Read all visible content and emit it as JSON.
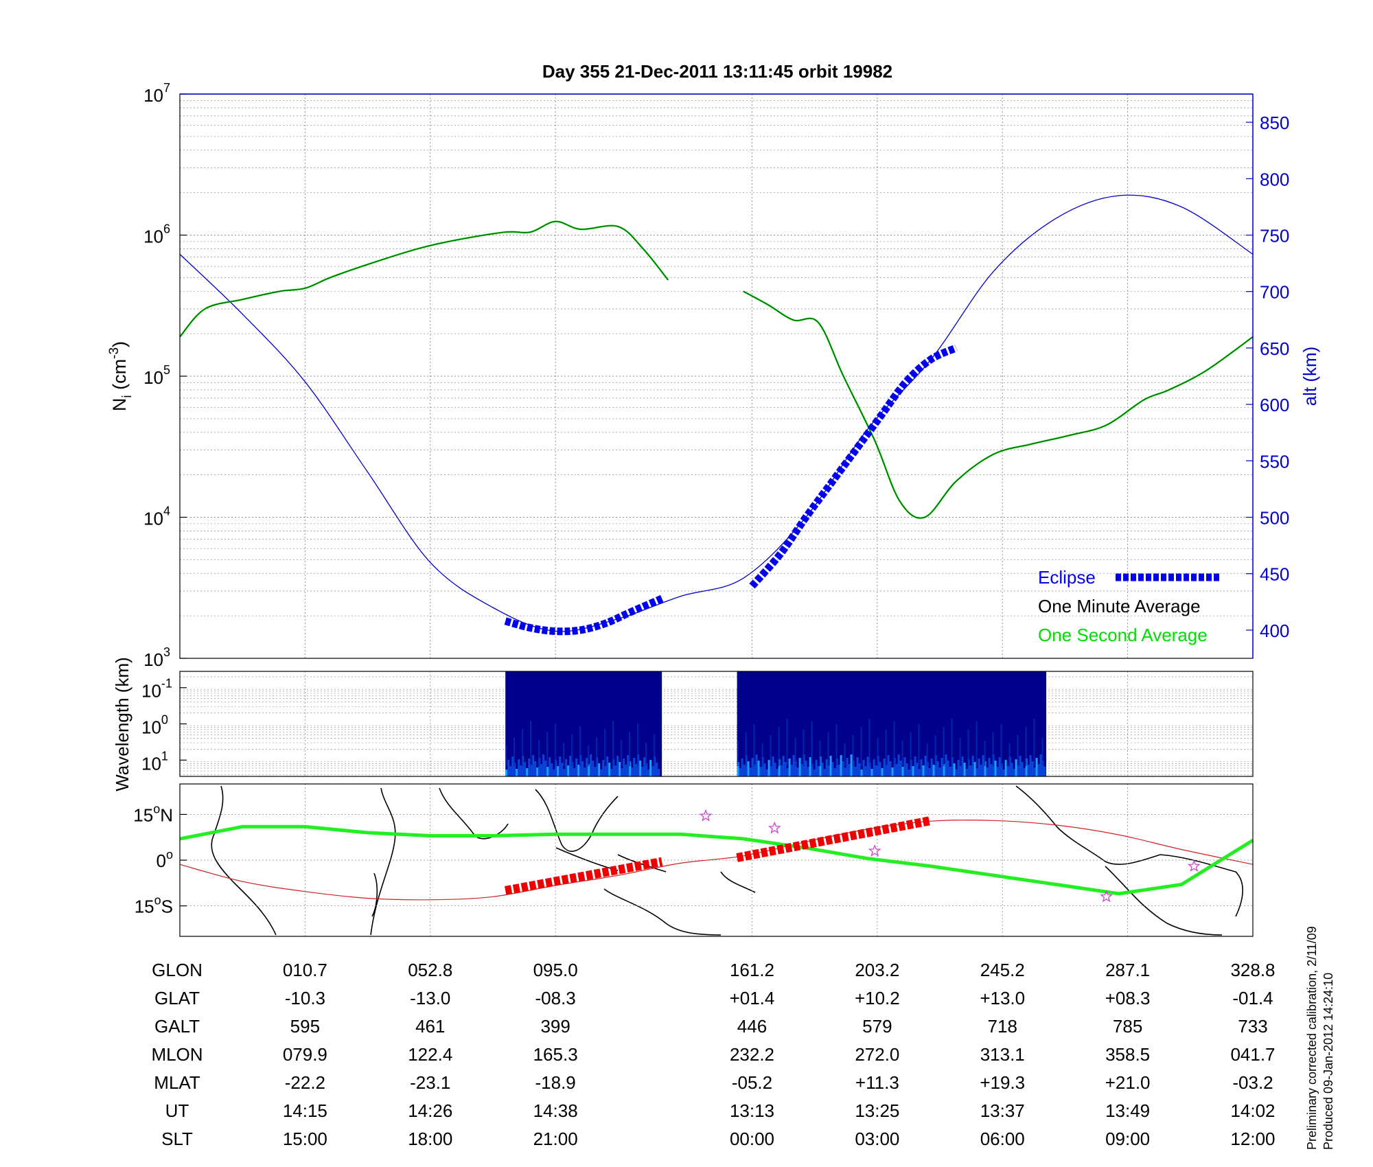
{
  "title": "Day 355  21-Dec-2011 13:11:45   orbit 19982",
  "colors": {
    "density": "#006400",
    "altitude": "#0000cc",
    "eclipse": "#0000ee",
    "axis_right": "#0000cc",
    "one_second": "#00dd00",
    "track_green": "#22ee22",
    "track_red_line": "#cc2222",
    "track_red_marks": "#ee0000",
    "stars": "#cc44cc"
  },
  "chart_data": [
    {
      "type": "line",
      "title": "Day 355  21-Dec-2011 13:11:45   orbit 19982",
      "ylabel": "N",
      "ylabel_sub": "i",
      "ylabel_unit": "(cm",
      "ylabel_unit_sup": "-3",
      "ylabel_unit_end": ")",
      "yscale": "log",
      "ylim": [
        1000,
        10000000
      ],
      "y_ticks": [
        {
          "base": "10",
          "exp": "3",
          "value": 1000
        },
        {
          "base": "10",
          "exp": "4",
          "value": 10000
        },
        {
          "base": "10",
          "exp": "5",
          "value": 100000
        },
        {
          "base": "10",
          "exp": "6",
          "value": 1000000
        },
        {
          "base": "10",
          "exp": "7",
          "value": 10000000
        }
      ],
      "y2label": "alt (km)",
      "y2lim": [
        375,
        875
      ],
      "y2_ticks": [
        "400",
        "450",
        "500",
        "550",
        "600",
        "650",
        "700",
        "750",
        "800",
        "850"
      ],
      "xlim": [
        0,
        8.57
      ],
      "x_gridlines": [
        1,
        2,
        3,
        4.57,
        5.57,
        6.57,
        7.57,
        8.57
      ],
      "grid": true,
      "legend": {
        "placement": "bottom-right",
        "entries": [
          {
            "label": "Eclipse",
            "color": "#0000ee"
          },
          {
            "label": "One Minute Average",
            "color": "#000000"
          },
          {
            "label": "One Second Average",
            "color": "#00dd00"
          }
        ]
      },
      "series": [
        {
          "name": "One Minute Average",
          "segments": [
            {
              "x": [
                0,
                0.2,
                0.5,
                0.8,
                1.0,
                1.2,
                1.5,
                1.9,
                2.2,
                2.6,
                2.8,
                3.0,
                3.2,
                3.5,
                3.7,
                3.9
              ],
              "y": [
                190000,
                300000,
                350000,
                400000,
                420000,
                500000,
                620000,
                800000,
                920000,
                1050000,
                1050000,
                1250000,
                1100000,
                1150000,
                800000,
                480000
              ]
            },
            {
              "x": [
                4.5,
                4.7,
                4.9,
                5.1,
                5.3,
                5.55,
                5.75,
                5.95,
                6.2,
                6.5,
                6.8,
                7.1,
                7.4,
                7.7,
                7.9,
                8.2,
                8.57
              ],
              "y": [
                400000,
                320000,
                250000,
                240000,
                100000,
                35000,
                13000,
                10000,
                18000,
                28000,
                33000,
                38000,
                45000,
                68000,
                80000,
                110000,
                190000
              ]
            }
          ]
        },
        {
          "name": "altitude",
          "axis": "right",
          "x": [
            0,
            0.5,
            1.0,
            1.5,
            2.0,
            2.5,
            3.0,
            3.5,
            4.0,
            4.5,
            5.0,
            5.5,
            6.0,
            6.5,
            7.0,
            7.5,
            8.0,
            8.57
          ],
          "y": [
            733,
            680,
            620,
            540,
            460,
            420,
            399,
            410,
            430,
            446,
            500,
            579,
            640,
            718,
            765,
            785,
            775,
            733
          ]
        },
        {
          "name": "Eclipse",
          "axis": "right",
          "segments": [
            {
              "x": [
                2.6,
                2.8,
                3.0,
                3.2,
                3.4,
                3.6,
                3.85
              ],
              "y": [
                408,
                402,
                399,
                400,
                406,
                416,
                428
              ]
            },
            {
              "x": [
                4.57,
                4.8,
                5.0,
                5.2,
                5.4,
                5.6,
                5.8,
                6.0,
                6.2
              ],
              "y": [
                439,
                468,
                500,
                530,
                560,
                590,
                620,
                640,
                650
              ]
            }
          ]
        }
      ]
    },
    {
      "type": "heatmap",
      "ylabel": "Wavelength (km)",
      "yscale": "log",
      "y_ticks": [
        {
          "base": "10",
          "exp": "-1"
        },
        {
          "base": "10",
          "exp": "0"
        },
        {
          "base": "10",
          "exp": "1"
        }
      ],
      "blocks": [
        {
          "x_start": 2.6,
          "x_end": 3.85
        },
        {
          "x_start": 4.45,
          "x_end": 6.92
        }
      ]
    },
    {
      "type": "map",
      "y_ticks": [
        {
          "deg": "15",
          "hemi": "N",
          "lat": 15
        },
        {
          "deg": "0",
          "hemi": "",
          "lat": 0
        },
        {
          "deg": "15",
          "hemi": "S",
          "lat": -15
        }
      ],
      "ylim": [
        -25,
        25
      ],
      "magnetic_equator": {
        "x": [
          0,
          0.5,
          1.0,
          1.5,
          2.0,
          2.5,
          3.0,
          3.5,
          4.0,
          4.5,
          5.0,
          5.5,
          6.0,
          6.5,
          7.0,
          7.5,
          8.0,
          8.57
        ],
        "lat": [
          7,
          11,
          11,
          9,
          8,
          8,
          8.5,
          8.5,
          8.5,
          7,
          4,
          0.5,
          -2,
          -5,
          -8,
          -11,
          -8,
          6.5
        ]
      },
      "ground_track": {
        "x": [
          0,
          0.5,
          1.0,
          1.5,
          2.0,
          2.5,
          3.0,
          3.5,
          4.0,
          4.5,
          5.0,
          5.5,
          6.0,
          6.5,
          7.0,
          7.5,
          8.0,
          8.57
        ],
        "lat": [
          -1.4,
          -7,
          -10.3,
          -12.5,
          -13,
          -12,
          -8.3,
          -5,
          -1,
          1.4,
          6,
          10.2,
          12.8,
          13,
          11.5,
          8.3,
          3.5,
          -1.4
        ]
      },
      "eclipse_track": [
        {
          "x": [
            2.6,
            3.85
          ],
          "lat": [
            -10,
            -0.5
          ]
        },
        {
          "x": [
            4.45,
            6.0
          ],
          "lat": [
            0.8,
            13
          ]
        }
      ],
      "stars": [
        {
          "x": 4.2,
          "lat": 14.5
        },
        {
          "x": 4.75,
          "lat": 10.5
        },
        {
          "x": 5.55,
          "lat": 3
        },
        {
          "x": 7.4,
          "lat": -12
        },
        {
          "x": 8.1,
          "lat": -2
        }
      ]
    }
  ],
  "table": {
    "rows": [
      {
        "label": "GLON",
        "values": [
          "010.7",
          "052.8",
          "095.0",
          "161.2",
          "203.2",
          "245.2",
          "287.1",
          "328.8"
        ]
      },
      {
        "label": "GLAT",
        "values": [
          "-10.3",
          "-13.0",
          "-08.3",
          "+01.4",
          "+10.2",
          "+13.0",
          "+08.3",
          "-01.4"
        ]
      },
      {
        "label": "GALT",
        "values": [
          "595",
          "461",
          "399",
          "446",
          "579",
          "718",
          "785",
          "733"
        ]
      },
      {
        "label": "MLON",
        "values": [
          "079.9",
          "122.4",
          "165.3",
          "232.2",
          "272.0",
          "313.1",
          "358.5",
          "041.7"
        ]
      },
      {
        "label": "MLAT",
        "values": [
          "-22.2",
          "-23.1",
          "-18.9",
          "-05.2",
          "+11.3",
          "+19.3",
          "+21.0",
          "-03.2"
        ]
      },
      {
        "label": "UT",
        "values": [
          "14:15",
          "14:26",
          "14:38",
          "13:13",
          "13:25",
          "13:37",
          "13:49",
          "14:02"
        ]
      },
      {
        "label": "SLT",
        "values": [
          "15:00",
          "18:00",
          "21:00",
          "00:00",
          "03:00",
          "06:00",
          "09:00",
          "12:00"
        ]
      }
    ]
  },
  "footnote": {
    "line1": "Preliminary corrected calibration, 2/11/09",
    "line2": "Produced 09-Jan-2012 14:24:10"
  }
}
